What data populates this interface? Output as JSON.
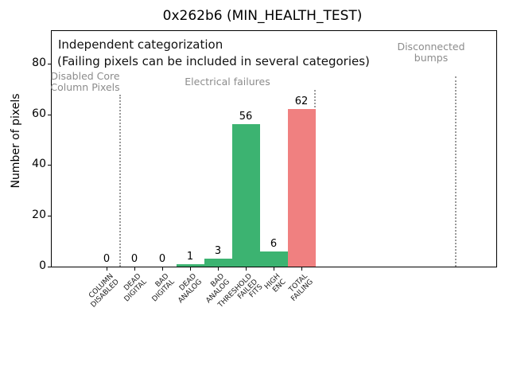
{
  "chart_data": {
    "type": "bar",
    "title": "0x262b6 (MIN_HEALTH_TEST)",
    "xlabel": "",
    "ylabel": "Number of pixels",
    "ylim": [
      0,
      93
    ],
    "yticks": [
      0,
      20,
      40,
      60,
      80
    ],
    "grid": false,
    "legend": "none",
    "categories": [
      "COLUMN\nDISABLED",
      "DEAD\nDIGITAL",
      "BAD\nDIGITAL",
      "DEAD\nANALOG",
      "BAD\nANALOG",
      "THRESHOLD\nFAILED\nFITS",
      "HIGH\nENC",
      "TOTAL\nFAILING"
    ],
    "values": [
      0,
      0,
      0,
      1,
      3,
      56,
      6,
      62
    ],
    "bar_value_labels": [
      "0",
      "0",
      "0",
      "1",
      "3",
      "56",
      "6",
      "62"
    ],
    "bar_colors": [
      "#3cb371",
      "#3cb371",
      "#3cb371",
      "#3cb371",
      "#3cb371",
      "#3cb371",
      "#3cb371",
      "#f08080"
    ],
    "annotations": {
      "line1": "Independent categorization",
      "line2": "(Failing pixels can be included in several categories)"
    },
    "regions": [
      {
        "label": "Disabled Core\nColumn Pixels"
      },
      {
        "label": "Electrical failures"
      },
      {
        "label": "Disconnected\nbumps"
      }
    ],
    "colors": {
      "category_bar_green": "#3cb371",
      "total_bar_red": "#f08080",
      "region_label_gray": "#8c8c8c",
      "separator_gray": "#9a9a9a",
      "axis_black": "#000000"
    }
  }
}
